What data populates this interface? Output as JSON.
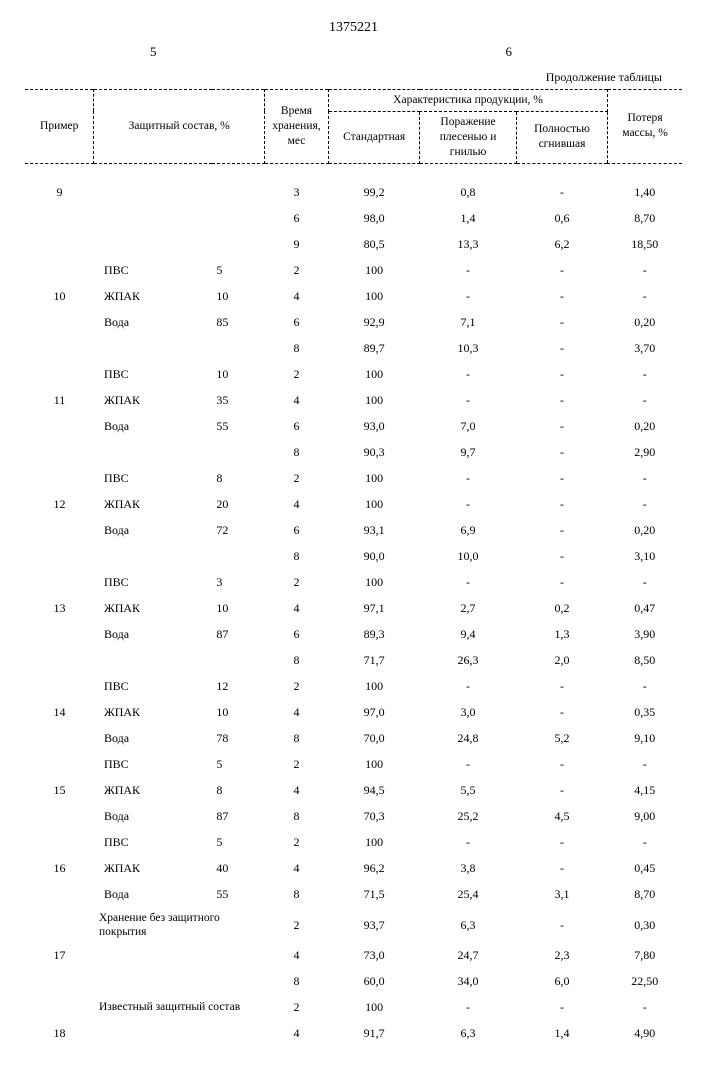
{
  "doc_number": "1375221",
  "page_left": "5",
  "page_right": "6",
  "continuation": "Продолжение таблицы",
  "headers": {
    "example": "Пример",
    "composition": "Защитный состав, %",
    "storage_time": "Время хранения, мес",
    "product_char": "Характеристика продукции, %",
    "standard": "Стандартная",
    "mold": "Поражение плесенью и гнилью",
    "rotten": "Полностью сгнившая",
    "mass_loss": "Потеря массы, %"
  },
  "notes": {
    "no_coating": "Хранение без защитного покрытия",
    "known": "Известный защитный состав"
  },
  "comp": {
    "pvs": "ПВС",
    "zhpak": "ЖПАК",
    "voda": "Вода"
  },
  "rows": [
    {
      "ex": "9",
      "cn": "",
      "cp": "",
      "t": "3",
      "s": "99,2",
      "m": "0,8",
      "r": "-",
      "l": "1,40"
    },
    {
      "ex": "",
      "cn": "",
      "cp": "",
      "t": "6",
      "s": "98,0",
      "m": "1,4",
      "r": "0,6",
      "l": "8,70"
    },
    {
      "ex": "",
      "cn": "",
      "cp": "",
      "t": "9",
      "s": "80,5",
      "m": "13,3",
      "r": "6,2",
      "l": "18,50"
    },
    {
      "ex": "",
      "cn": "ПВС",
      "cp": "5",
      "t": "2",
      "s": "100",
      "m": "-",
      "r": "-",
      "l": "-"
    },
    {
      "ex": "10",
      "cn": "ЖПАК",
      "cp": "10",
      "t": "4",
      "s": "100",
      "m": "-",
      "r": "-",
      "l": "-"
    },
    {
      "ex": "",
      "cn": "Вода",
      "cp": "85",
      "t": "6",
      "s": "92,9",
      "m": "7,1",
      "r": "-",
      "l": "0,20"
    },
    {
      "ex": "",
      "cn": "",
      "cp": "",
      "t": "8",
      "s": "89,7",
      "m": "10,3",
      "r": "-",
      "l": "3,70"
    },
    {
      "ex": "",
      "cn": "ПВС",
      "cp": "10",
      "t": "2",
      "s": "100",
      "m": "-",
      "r": "-",
      "l": "-"
    },
    {
      "ex": "11",
      "cn": "ЖПАК",
      "cp": "35",
      "t": "4",
      "s": "100",
      "m": "-",
      "r": "-",
      "l": "-"
    },
    {
      "ex": "",
      "cn": "Вода",
      "cp": "55",
      "t": "6",
      "s": "93,0",
      "m": "7,0",
      "r": "-",
      "l": "0,20"
    },
    {
      "ex": "",
      "cn": "",
      "cp": "",
      "t": "8",
      "s": "90,3",
      "m": "9,7",
      "r": "-",
      "l": "2,90"
    },
    {
      "ex": "",
      "cn": "ПВС",
      "cp": "8",
      "t": "2",
      "s": "100",
      "m": "-",
      "r": "-",
      "l": "-"
    },
    {
      "ex": "12",
      "cn": "ЖПАК",
      "cp": "20",
      "t": "4",
      "s": "100",
      "m": "-",
      "r": "-",
      "l": "-"
    },
    {
      "ex": "",
      "cn": "Вода",
      "cp": "72",
      "t": "6",
      "s": "93,1",
      "m": "6,9",
      "r": "-",
      "l": "0,20"
    },
    {
      "ex": "",
      "cn": "",
      "cp": "",
      "t": "8",
      "s": "90,0",
      "m": "10,0",
      "r": "-",
      "l": "3,10"
    },
    {
      "ex": "",
      "cn": "ПВС",
      "cp": "3",
      "t": "2",
      "s": "100",
      "m": "-",
      "r": "-",
      "l": "-"
    },
    {
      "ex": "13",
      "cn": "ЖПАК",
      "cp": "10",
      "t": "4",
      "s": "97,1",
      "m": "2,7",
      "r": "0,2",
      "l": "0,47"
    },
    {
      "ex": "",
      "cn": "Вода",
      "cp": "87",
      "t": "6",
      "s": "89,3",
      "m": "9,4",
      "r": "1,3",
      "l": "3,90"
    },
    {
      "ex": "",
      "cn": "",
      "cp": "",
      "t": "8",
      "s": "71,7",
      "m": "26,3",
      "r": "2,0",
      "l": "8,50"
    },
    {
      "ex": "",
      "cn": "ПВС",
      "cp": "12",
      "t": "2",
      "s": "100",
      "m": "-",
      "r": "-",
      "l": "-"
    },
    {
      "ex": "14",
      "cn": "ЖПАК",
      "cp": "10",
      "t": "4",
      "s": "97,0",
      "m": "3,0",
      "r": "-",
      "l": "0,35"
    },
    {
      "ex": "",
      "cn": "Вода",
      "cp": "78",
      "t": "8",
      "s": "70,0",
      "m": "24,8",
      "r": "5,2",
      "l": "9,10"
    },
    {
      "ex": "",
      "cn": "ПВС",
      "cp": "5",
      "t": "2",
      "s": "100",
      "m": "-",
      "r": "-",
      "l": "-"
    },
    {
      "ex": "15",
      "cn": "ЖПАК",
      "cp": "8",
      "t": "4",
      "s": "94,5",
      "m": "5,5",
      "r": "-",
      "l": "4,15"
    },
    {
      "ex": "",
      "cn": "Вода",
      "cp": "87",
      "t": "8",
      "s": "70,3",
      "m": "25,2",
      "r": "4,5",
      "l": "9,00"
    },
    {
      "ex": "",
      "cn": "ПВС",
      "cp": "5",
      "t": "2",
      "s": "100",
      "m": "-",
      "r": "-",
      "l": "-"
    },
    {
      "ex": "16",
      "cn": "ЖПАК",
      "cp": "40",
      "t": "4",
      "s": "96,2",
      "m": "3,8",
      "r": "-",
      "l": "0,45"
    },
    {
      "ex": "",
      "cn": "Вода",
      "cp": "55",
      "t": "8",
      "s": "71,5",
      "m": "25,4",
      "r": "3,1",
      "l": "8,70"
    },
    {
      "ex": "",
      "note": "no_coating",
      "cp": "",
      "t": "2",
      "s": "93,7",
      "m": "6,3",
      "r": "-",
      "l": "0,30"
    },
    {
      "ex": "17",
      "cn": "",
      "cp": "",
      "t": "4",
      "s": "73,0",
      "m": "24,7",
      "r": "2,3",
      "l": "7,80"
    },
    {
      "ex": "",
      "cn": "",
      "cp": "",
      "t": "8",
      "s": "60,0",
      "m": "34,0",
      "r": "6,0",
      "l": "22,50"
    },
    {
      "ex": "",
      "note": "known",
      "cp": "",
      "t": "2",
      "s": "100",
      "m": "-",
      "r": "-",
      "l": "-"
    },
    {
      "ex": "18",
      "cn": "",
      "cp": "",
      "t": "4",
      "s": "91,7",
      "m": "6,3",
      "r": "1,4",
      "l": "4,90"
    }
  ]
}
